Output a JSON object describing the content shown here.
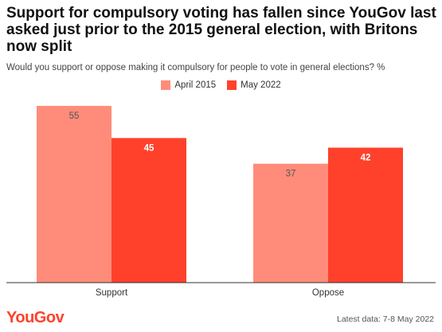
{
  "header": {
    "title": "Support for compulsory voting has fallen since YouGov last asked just prior to the 2015 general election, with Britons now split",
    "subtitle": "Would you support or oppose making it compulsory for people to vote in general elections? %"
  },
  "footer": {
    "logo_text": "YouGov",
    "note": "Latest data: 7-8 May 2022"
  },
  "colors": {
    "april_2015": "#ff8c7a",
    "may_2022": "#ff412c",
    "axis": "#333333"
  },
  "chart_data": {
    "type": "bar",
    "categories": [
      "Support",
      "Oppose"
    ],
    "series": [
      {
        "name": "April 2015",
        "values": [
          55,
          37
        ],
        "color": "#ff8c7a"
      },
      {
        "name": "May 2022",
        "values": [
          45,
          42
        ],
        "color": "#ff412c"
      }
    ],
    "ylim": [
      0,
      55
    ],
    "grid": false,
    "legend": "top-center",
    "data_labels": true
  }
}
